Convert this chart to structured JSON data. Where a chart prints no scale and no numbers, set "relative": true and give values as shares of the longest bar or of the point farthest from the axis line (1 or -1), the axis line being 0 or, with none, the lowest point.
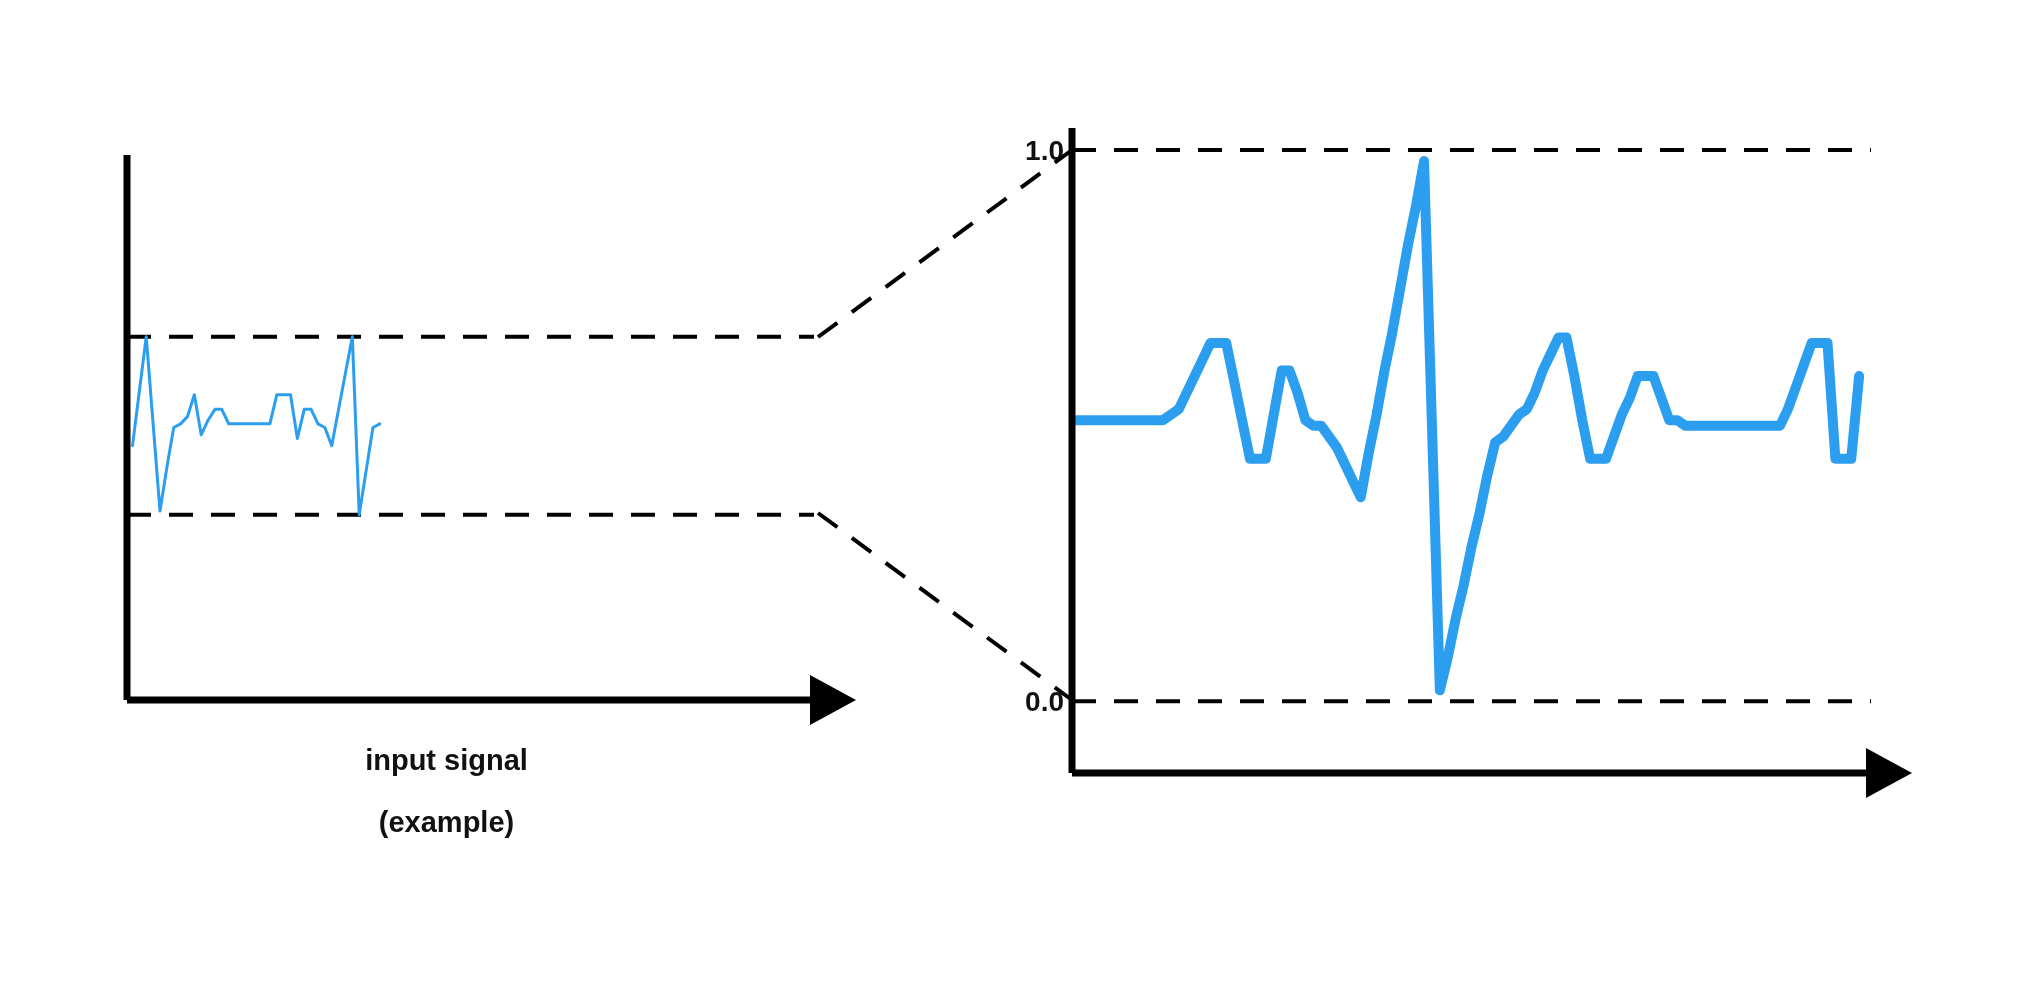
{
  "chart_data": [
    {
      "type": "line",
      "relative": true,
      "xlabel": "input signal (example)",
      "tick_labels": false,
      "grid": false,
      "legend": false,
      "marker": "none",
      "line_style": "solid",
      "categories": [
        null,
        null,
        null,
        null,
        null,
        null,
        null,
        null,
        null,
        null,
        null,
        null,
        null,
        null,
        null,
        null,
        null,
        null,
        null,
        null,
        null,
        null,
        null,
        null,
        null,
        null,
        null,
        null,
        null,
        null,
        null,
        null,
        null,
        null,
        null,
        null,
        null
      ],
      "series": [
        {
          "color": "#2b9ef0",
          "values": [
            0.7,
            0.85,
            1.0,
            0.76,
            0.52,
            0.64,
            0.75,
            0.76,
            0.78,
            0.84,
            0.73,
            0.77,
            0.8,
            0.8,
            0.76,
            0.76,
            0.76,
            0.76,
            0.76,
            0.76,
            0.76,
            0.84,
            0.84,
            0.84,
            0.72,
            0.8,
            0.8,
            0.76,
            0.75,
            0.7,
            0.8,
            0.9,
            1.0,
            0.51,
            0.63,
            0.75,
            0.76
          ]
        }
      ],
      "ref_lines": [
        {
          "axis": "y",
          "value": 1.0,
          "color": "#000000",
          "line_style": "dashed"
        },
        {
          "axis": "y",
          "value": 0.51,
          "color": "#000000",
          "line_style": "dashed"
        }
      ]
    },
    {
      "type": "line",
      "ylim": [
        -0.13,
        1.04
      ],
      "yticks": [
        {
          "value": 0,
          "label": "0.0"
        },
        {
          "value": 1,
          "label": "1.0"
        }
      ],
      "tick_labels": "y",
      "grid": false,
      "legend": false,
      "marker": "none",
      "line_style": "solid",
      "categories": [
        null,
        null,
        null,
        null,
        null,
        null,
        null,
        null,
        null,
        null,
        null,
        null,
        null,
        null,
        null,
        null,
        null,
        null,
        null,
        null,
        null,
        null,
        null,
        null,
        null,
        null,
        null,
        null,
        null,
        null,
        null,
        null,
        null,
        null,
        null,
        null,
        null,
        null,
        null,
        null,
        null,
        null,
        null,
        null,
        null,
        null,
        null,
        null,
        null,
        null,
        null,
        null,
        null,
        null,
        null,
        null,
        null,
        null,
        null,
        null,
        null,
        null,
        null,
        null,
        null,
        null,
        null,
        null,
        null,
        null,
        null,
        null,
        null,
        null,
        null,
        null,
        null,
        null,
        null,
        null,
        null,
        null,
        null,
        null,
        null,
        null,
        null,
        null,
        null,
        null,
        null,
        null,
        null,
        null,
        null,
        null,
        null,
        null,
        null,
        null
      ],
      "series": [
        {
          "color": "#2b9ef0",
          "values": [
            0.51,
            0.51,
            0.51,
            0.51,
            0.51,
            0.51,
            0.51,
            0.51,
            0.51,
            0.51,
            0.51,
            0.51,
            0.52,
            0.53,
            0.56,
            0.59,
            0.62,
            0.65,
            0.65,
            0.65,
            0.58,
            0.51,
            0.44,
            0.44,
            0.44,
            0.52,
            0.6,
            0.6,
            0.56,
            0.51,
            0.5,
            0.5,
            0.48,
            0.46,
            0.43,
            0.4,
            0.37,
            0.45,
            0.52,
            0.6,
            0.67,
            0.75,
            0.83,
            0.9,
            0.98,
            0.5,
            0.02,
            0.08,
            0.15,
            0.21,
            0.28,
            0.34,
            0.41,
            0.47,
            0.48,
            0.5,
            0.52,
            0.53,
            0.56,
            0.6,
            0.63,
            0.66,
            0.66,
            0.59,
            0.51,
            0.44,
            0.44,
            0.44,
            0.48,
            0.52,
            0.55,
            0.59,
            0.59,
            0.59,
            0.55,
            0.51,
            0.51,
            0.5,
            0.5,
            0.5,
            0.5,
            0.5,
            0.5,
            0.5,
            0.5,
            0.5,
            0.5,
            0.5,
            0.5,
            0.5,
            0.53,
            0.57,
            0.61,
            0.65,
            0.65,
            0.65,
            0.44,
            0.44,
            0.44,
            0.59
          ]
        }
      ],
      "ref_lines": [
        {
          "axis": "y",
          "value": 1.0,
          "color": "#000000",
          "line_style": "dashed"
        },
        {
          "axis": "y",
          "value": 0,
          "color": "#000000",
          "line_style": "dashed"
        }
      ]
    }
  ]
}
